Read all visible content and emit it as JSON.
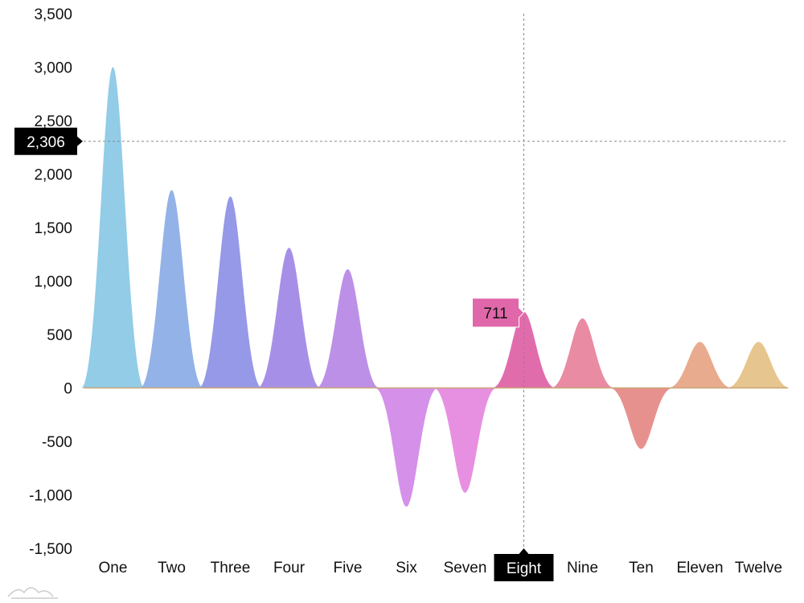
{
  "chart_data": {
    "type": "area",
    "categories": [
      "One",
      "Two",
      "Three",
      "Four",
      "Five",
      "Six",
      "Seven",
      "Eight",
      "Nine",
      "Ten",
      "Eleven",
      "Twelve"
    ],
    "values": [
      3000,
      1850,
      1790,
      1310,
      1110,
      -1110,
      -980,
      711,
      650,
      -570,
      430,
      430
    ],
    "colors": [
      "#8ecae6",
      "#90afe6",
      "#9296e6",
      "#a38ce6",
      "#bb8ce6",
      "#d48ce9",
      "#e68ce0",
      "#e067a9",
      "#e888a0",
      "#e68d8a",
      "#e8a88a",
      "#e6c38a"
    ],
    "yticks": [
      3500,
      3000,
      2500,
      2000,
      1500,
      1000,
      500,
      0,
      -500,
      -1000,
      -1500
    ],
    "ytick_labels": [
      "3,500",
      "3,000",
      "2,500",
      "2,000",
      "1,500",
      "1,000",
      "500",
      "0",
      "-500",
      "-1,000",
      "-1,500"
    ],
    "ylim": [
      -1500,
      3500
    ],
    "grid": false,
    "cursor": {
      "category": "Eight",
      "category_label": "Eight",
      "y_value": 2306,
      "y_label": "2,306",
      "tooltip_text": "711",
      "tooltip_color": "#e067a9"
    }
  }
}
